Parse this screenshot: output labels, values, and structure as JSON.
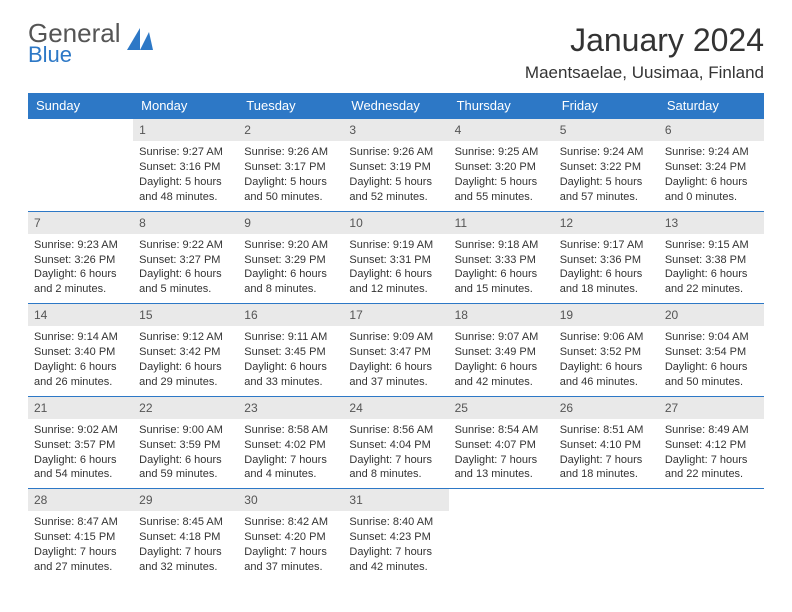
{
  "brand": {
    "line1": "General",
    "line2": "Blue",
    "accent": "#2d78c6",
    "text": "#555555"
  },
  "title": "January 2024",
  "location": "Maentsaelae, Uusimaa, Finland",
  "colors": {
    "header_bg": "#2d78c6",
    "header_text": "#ffffff",
    "daynum_bg": "#e9e9e9",
    "daynum_text": "#555555",
    "rule": "#2d78c6",
    "body_text": "#333333",
    "page_bg": "#ffffff"
  },
  "typography": {
    "title_size": 32,
    "location_size": 17,
    "th_size": 13,
    "daynum_size": 12,
    "cell_size": 11
  },
  "weekdays": [
    "Sunday",
    "Monday",
    "Tuesday",
    "Wednesday",
    "Thursday",
    "Friday",
    "Saturday"
  ],
  "weeks": [
    [
      null,
      {
        "d": "1",
        "sr": "Sunrise: 9:27 AM",
        "ss": "Sunset: 3:16 PM",
        "dl": "Daylight: 5 hours and 48 minutes."
      },
      {
        "d": "2",
        "sr": "Sunrise: 9:26 AM",
        "ss": "Sunset: 3:17 PM",
        "dl": "Daylight: 5 hours and 50 minutes."
      },
      {
        "d": "3",
        "sr": "Sunrise: 9:26 AM",
        "ss": "Sunset: 3:19 PM",
        "dl": "Daylight: 5 hours and 52 minutes."
      },
      {
        "d": "4",
        "sr": "Sunrise: 9:25 AM",
        "ss": "Sunset: 3:20 PM",
        "dl": "Daylight: 5 hours and 55 minutes."
      },
      {
        "d": "5",
        "sr": "Sunrise: 9:24 AM",
        "ss": "Sunset: 3:22 PM",
        "dl": "Daylight: 5 hours and 57 minutes."
      },
      {
        "d": "6",
        "sr": "Sunrise: 9:24 AM",
        "ss": "Sunset: 3:24 PM",
        "dl": "Daylight: 6 hours and 0 minutes."
      }
    ],
    [
      {
        "d": "7",
        "sr": "Sunrise: 9:23 AM",
        "ss": "Sunset: 3:26 PM",
        "dl": "Daylight: 6 hours and 2 minutes."
      },
      {
        "d": "8",
        "sr": "Sunrise: 9:22 AM",
        "ss": "Sunset: 3:27 PM",
        "dl": "Daylight: 6 hours and 5 minutes."
      },
      {
        "d": "9",
        "sr": "Sunrise: 9:20 AM",
        "ss": "Sunset: 3:29 PM",
        "dl": "Daylight: 6 hours and 8 minutes."
      },
      {
        "d": "10",
        "sr": "Sunrise: 9:19 AM",
        "ss": "Sunset: 3:31 PM",
        "dl": "Daylight: 6 hours and 12 minutes."
      },
      {
        "d": "11",
        "sr": "Sunrise: 9:18 AM",
        "ss": "Sunset: 3:33 PM",
        "dl": "Daylight: 6 hours and 15 minutes."
      },
      {
        "d": "12",
        "sr": "Sunrise: 9:17 AM",
        "ss": "Sunset: 3:36 PM",
        "dl": "Daylight: 6 hours and 18 minutes."
      },
      {
        "d": "13",
        "sr": "Sunrise: 9:15 AM",
        "ss": "Sunset: 3:38 PM",
        "dl": "Daylight: 6 hours and 22 minutes."
      }
    ],
    [
      {
        "d": "14",
        "sr": "Sunrise: 9:14 AM",
        "ss": "Sunset: 3:40 PM",
        "dl": "Daylight: 6 hours and 26 minutes."
      },
      {
        "d": "15",
        "sr": "Sunrise: 9:12 AM",
        "ss": "Sunset: 3:42 PM",
        "dl": "Daylight: 6 hours and 29 minutes."
      },
      {
        "d": "16",
        "sr": "Sunrise: 9:11 AM",
        "ss": "Sunset: 3:45 PM",
        "dl": "Daylight: 6 hours and 33 minutes."
      },
      {
        "d": "17",
        "sr": "Sunrise: 9:09 AM",
        "ss": "Sunset: 3:47 PM",
        "dl": "Daylight: 6 hours and 37 minutes."
      },
      {
        "d": "18",
        "sr": "Sunrise: 9:07 AM",
        "ss": "Sunset: 3:49 PM",
        "dl": "Daylight: 6 hours and 42 minutes."
      },
      {
        "d": "19",
        "sr": "Sunrise: 9:06 AM",
        "ss": "Sunset: 3:52 PM",
        "dl": "Daylight: 6 hours and 46 minutes."
      },
      {
        "d": "20",
        "sr": "Sunrise: 9:04 AM",
        "ss": "Sunset: 3:54 PM",
        "dl": "Daylight: 6 hours and 50 minutes."
      }
    ],
    [
      {
        "d": "21",
        "sr": "Sunrise: 9:02 AM",
        "ss": "Sunset: 3:57 PM",
        "dl": "Daylight: 6 hours and 54 minutes."
      },
      {
        "d": "22",
        "sr": "Sunrise: 9:00 AM",
        "ss": "Sunset: 3:59 PM",
        "dl": "Daylight: 6 hours and 59 minutes."
      },
      {
        "d": "23",
        "sr": "Sunrise: 8:58 AM",
        "ss": "Sunset: 4:02 PM",
        "dl": "Daylight: 7 hours and 4 minutes."
      },
      {
        "d": "24",
        "sr": "Sunrise: 8:56 AM",
        "ss": "Sunset: 4:04 PM",
        "dl": "Daylight: 7 hours and 8 minutes."
      },
      {
        "d": "25",
        "sr": "Sunrise: 8:54 AM",
        "ss": "Sunset: 4:07 PM",
        "dl": "Daylight: 7 hours and 13 minutes."
      },
      {
        "d": "26",
        "sr": "Sunrise: 8:51 AM",
        "ss": "Sunset: 4:10 PM",
        "dl": "Daylight: 7 hours and 18 minutes."
      },
      {
        "d": "27",
        "sr": "Sunrise: 8:49 AM",
        "ss": "Sunset: 4:12 PM",
        "dl": "Daylight: 7 hours and 22 minutes."
      }
    ],
    [
      {
        "d": "28",
        "sr": "Sunrise: 8:47 AM",
        "ss": "Sunset: 4:15 PM",
        "dl": "Daylight: 7 hours and 27 minutes."
      },
      {
        "d": "29",
        "sr": "Sunrise: 8:45 AM",
        "ss": "Sunset: 4:18 PM",
        "dl": "Daylight: 7 hours and 32 minutes."
      },
      {
        "d": "30",
        "sr": "Sunrise: 8:42 AM",
        "ss": "Sunset: 4:20 PM",
        "dl": "Daylight: 7 hours and 37 minutes."
      },
      {
        "d": "31",
        "sr": "Sunrise: 8:40 AM",
        "ss": "Sunset: 4:23 PM",
        "dl": "Daylight: 7 hours and 42 minutes."
      },
      null,
      null,
      null
    ]
  ]
}
